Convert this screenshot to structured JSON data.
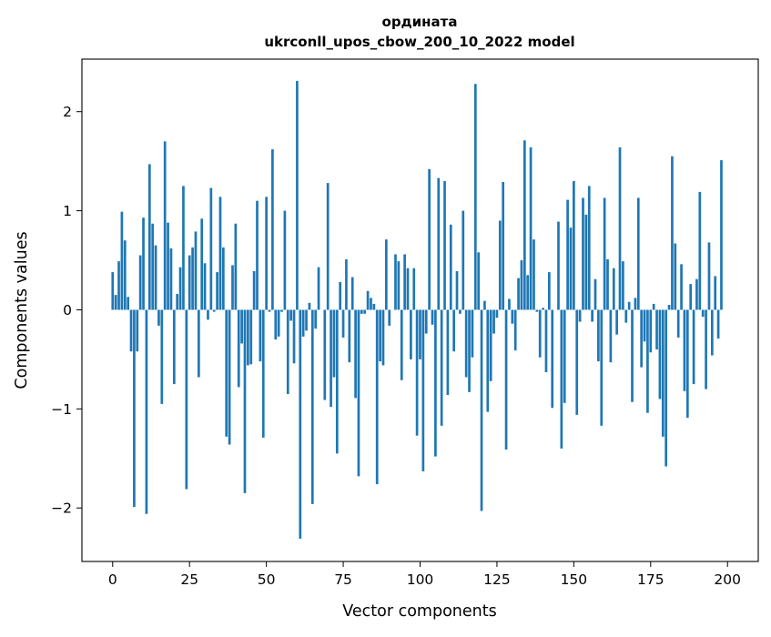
{
  "chart_data": {
    "type": "bar",
    "title": "ордината",
    "subtitle": "ukrconll_upos_cbow_200_10_2022 model",
    "xlabel": "Vector components",
    "ylabel": "Components values",
    "xlim": [
      -10,
      210
    ],
    "ylim": [
      -2.54,
      2.53
    ],
    "x_ticks": [
      0,
      25,
      50,
      75,
      100,
      125,
      150,
      175,
      200
    ],
    "x_tick_labels": [
      "0",
      "25",
      "50",
      "75",
      "100",
      "125",
      "150",
      "175",
      "200"
    ],
    "y_ticks": [
      -2,
      -1,
      0,
      1,
      2
    ],
    "y_tick_labels": [
      "−2",
      "−1",
      "0",
      "1",
      "2"
    ],
    "bar_color": "#1f77b4",
    "grid": false,
    "legend": "none",
    "series": [
      {
        "values": [
          0.38,
          0.15,
          0.49,
          0.99,
          0.7,
          0.13,
          -0.42,
          -1.99,
          -0.42,
          0.55,
          0.93,
          -2.06,
          1.47,
          0.87,
          0.65,
          -0.16,
          -0.95,
          1.7,
          0.88,
          0.62,
          -0.75,
          0.16,
          0.43,
          1.25,
          -1.81,
          0.55,
          0.63,
          0.79,
          -0.68,
          0.92,
          0.47,
          -0.1,
          1.23,
          -0.02,
          0.38,
          1.14,
          0.63,
          -1.28,
          -1.36,
          0.45,
          0.87,
          -0.78,
          -0.34,
          -1.85,
          -0.56,
          -0.55,
          0.39,
          1.1,
          -0.52,
          -1.29,
          1.14,
          -0.02,
          1.62,
          -0.3,
          -0.27,
          -0.02,
          1.0,
          -0.85,
          -0.11,
          -0.54,
          2.31,
          -2.31,
          -0.27,
          -0.21,
          0.07,
          -1.96,
          -0.19,
          0.43,
          0.0,
          -0.91,
          1.28,
          -0.98,
          -0.68,
          -1.45,
          0.28,
          -0.28,
          0.51,
          -0.53,
          0.33,
          -0.89,
          -1.68,
          -0.04,
          -0.04,
          0.19,
          0.12,
          0.06,
          -1.76,
          -0.52,
          -0.56,
          0.71,
          -0.16,
          0.0,
          0.56,
          0.49,
          -0.71,
          0.56,
          0.42,
          -0.5,
          0.42,
          -1.27,
          -0.5,
          -1.63,
          -0.24,
          1.42,
          -0.15,
          -1.48,
          1.33,
          -1.17,
          1.3,
          -0.86,
          0.86,
          -0.42,
          0.39,
          -0.04,
          1.0,
          -0.68,
          -0.83,
          -0.48,
          2.28,
          0.58,
          -2.03,
          0.09,
          -1.03,
          -0.72,
          -0.24,
          -0.08,
          0.9,
          1.29,
          -1.41,
          0.11,
          -0.14,
          -0.41,
          0.32,
          0.5,
          1.71,
          0.35,
          1.64,
          0.71,
          -0.02,
          -0.48,
          0.02,
          -0.63,
          0.38,
          -0.99,
          0.0,
          0.89,
          -1.4,
          -0.94,
          1.11,
          0.83,
          1.3,
          -1.06,
          -0.12,
          1.13,
          0.96,
          1.25,
          -0.12,
          0.31,
          -0.52,
          -1.17,
          1.13,
          0.51,
          -0.53,
          0.42,
          -0.25,
          1.64,
          0.49,
          -0.13,
          0.08,
          -0.93,
          0.12,
          1.13,
          -0.58,
          -0.32,
          -1.04,
          -0.43,
          0.06,
          -0.4,
          -0.9,
          -1.28,
          -1.58,
          0.05,
          1.55,
          0.67,
          -0.28,
          0.46,
          -0.82,
          -1.09,
          0.26,
          -0.75,
          0.31,
          1.19,
          -0.07,
          -0.8,
          0.68,
          -0.46,
          0.34,
          -0.29,
          1.51
        ]
      }
    ]
  }
}
